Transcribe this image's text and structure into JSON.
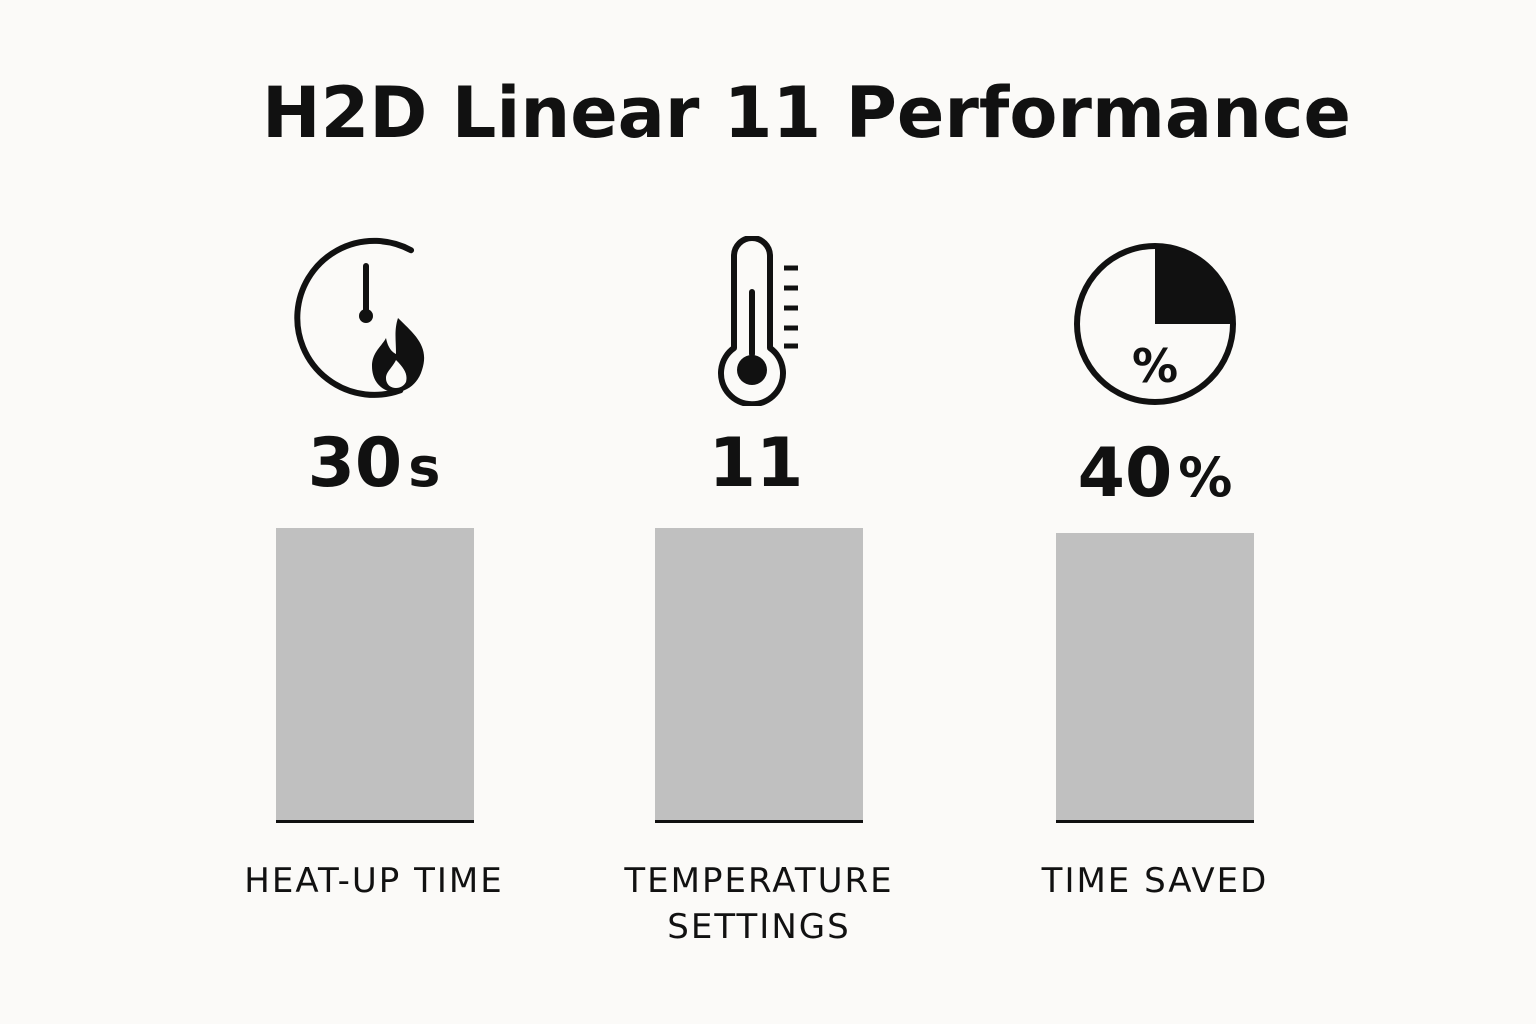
{
  "chart_data": {
    "type": "bar",
    "title": "H2D Linear 11 Performance",
    "categories": [
      "HEAT-UP TIME",
      "TEMPERATURE\nSETTINGS",
      "TIME SAVED"
    ],
    "metrics": [
      {
        "value": "30",
        "unit": "s",
        "icon": "timer-flame-icon"
      },
      {
        "value": "11",
        "unit": "",
        "icon": "thermometer-icon"
      },
      {
        "value": "40",
        "unit": "%",
        "icon": "percent-pie-icon"
      }
    ],
    "bar_color": "#c0c0c0",
    "grid": false
  }
}
